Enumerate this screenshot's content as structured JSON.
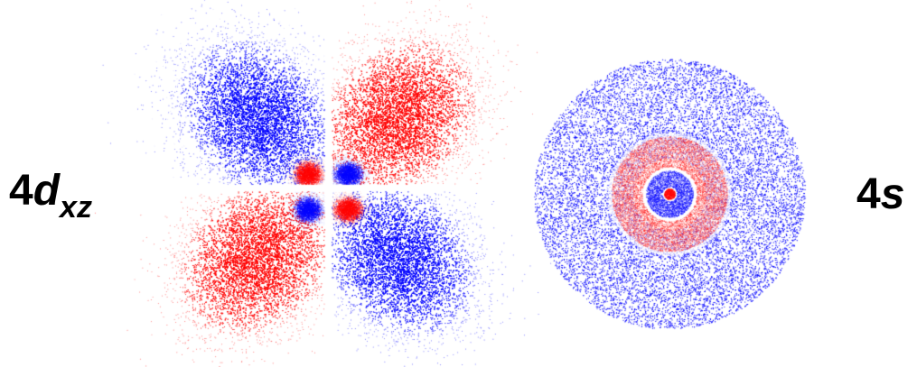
{
  "labels": {
    "dxz_principal": "4",
    "dxz_letter": "d",
    "dxz_subscript": "xz",
    "s_principal": "4",
    "s_letter": "s"
  },
  "colors": {
    "positive_phase": "#ff0000",
    "negative_phase": "#0000ff",
    "background": "#ffffff"
  },
  "orbitals": [
    {
      "name": "4d_xz",
      "shape": "four-lobe cloverleaf with inner nodal lobes",
      "lobes": 8
    },
    {
      "name": "4s",
      "shape": "concentric spherical shells",
      "shells": 4
    }
  ]
}
